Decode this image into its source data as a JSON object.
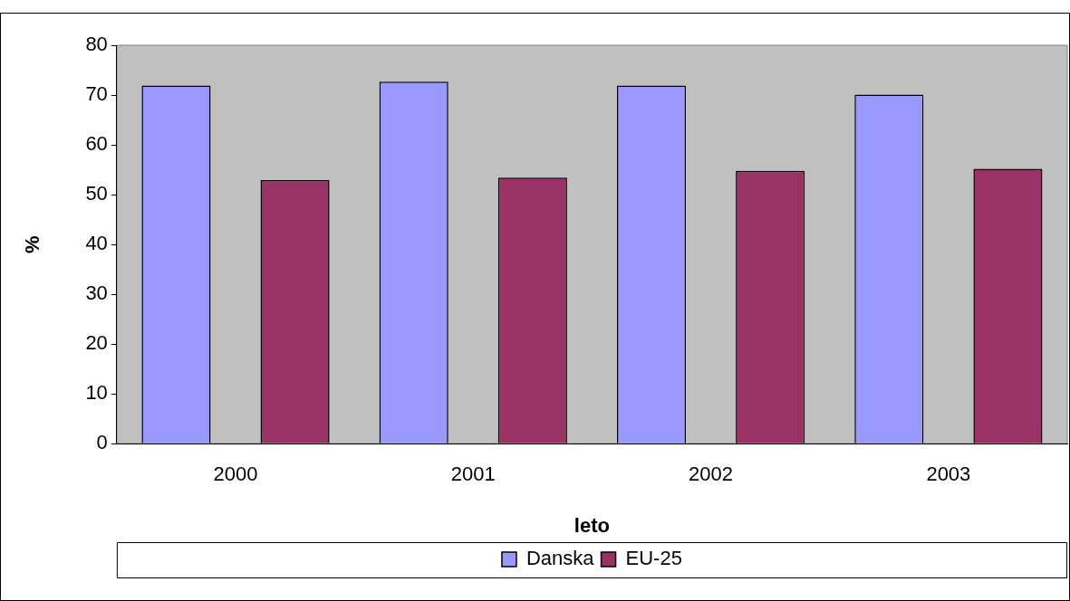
{
  "chart_data": {
    "type": "bar",
    "xlabel": "leto",
    "ylabel": "%",
    "categories": [
      "2000",
      "2001",
      "2002",
      "2003"
    ],
    "series": [
      {
        "name": "Danska",
        "color": "#9999ff",
        "values": [
          71.9,
          72.7,
          71.9,
          70.1
        ]
      },
      {
        "name": "EU-25",
        "color": "#993366",
        "values": [
          52.9,
          53.4,
          54.8,
          55.2
        ]
      }
    ],
    "ylim": [
      0,
      80
    ],
    "yticks": [
      0,
      10,
      20,
      30,
      40,
      50,
      60,
      70,
      80
    ],
    "grid": false,
    "legend": "bottom"
  }
}
